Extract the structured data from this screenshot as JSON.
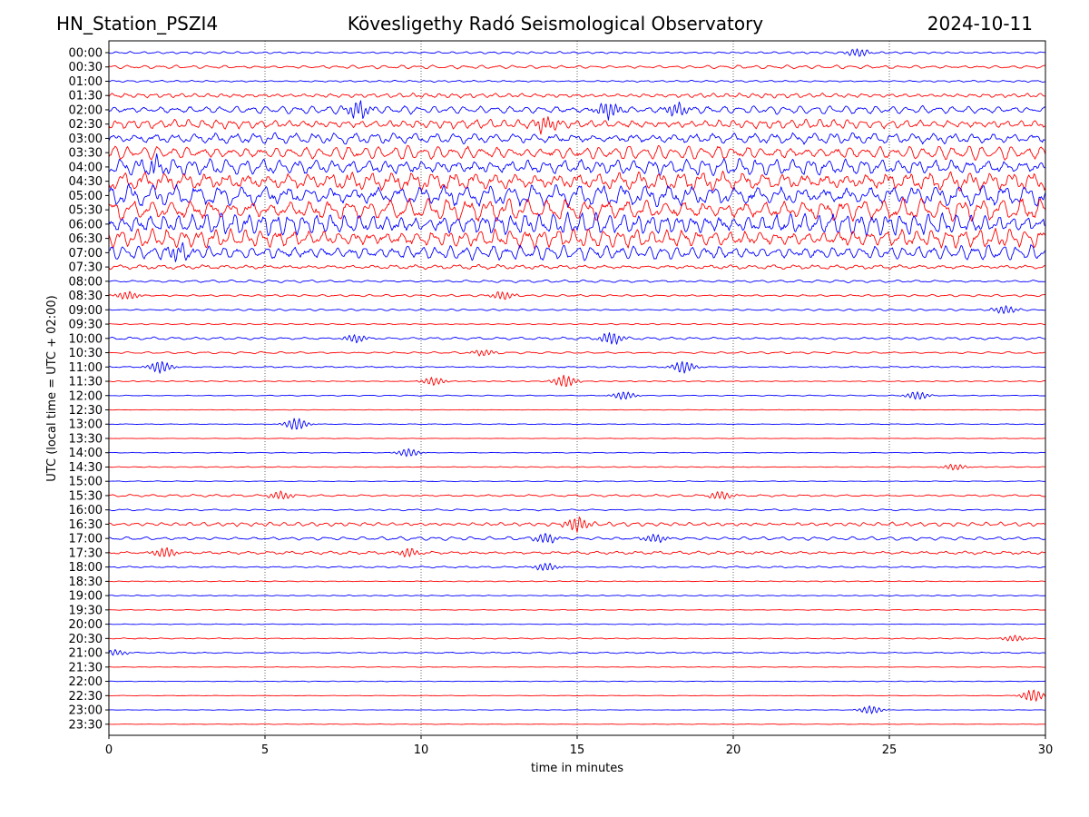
{
  "header": {
    "station": "HN_Station_PSZI4",
    "observatory": "Kövesligethy Radó Seismological Observatory",
    "date": "2024-10-11"
  },
  "chart_data": {
    "type": "line",
    "title": "Kövesligethy Radó Seismological Observatory",
    "xlabel": "time in minutes",
    "ylabel": "UTC (local time = UTC + 02:00)",
    "xlim": [
      0,
      30
    ],
    "xticks": [
      "0",
      "5",
      "10",
      "15",
      "20",
      "25",
      "30"
    ],
    "grid": "vertical dotted lines at 5-minute ticks",
    "colors": [
      "#0000ff",
      "#ff0000"
    ],
    "rows": [
      "00:00",
      "00:30",
      "01:00",
      "01:30",
      "02:00",
      "02:30",
      "03:00",
      "03:30",
      "04:00",
      "04:30",
      "05:00",
      "05:30",
      "06:00",
      "06:30",
      "07:00",
      "07:30",
      "08:00",
      "08:30",
      "09:00",
      "09:30",
      "10:00",
      "10:30",
      "11:00",
      "11:30",
      "12:00",
      "12:30",
      "13:00",
      "13:30",
      "14:00",
      "14:30",
      "15:00",
      "15:30",
      "16:00",
      "16:30",
      "17:00",
      "17:30",
      "18:00",
      "18:30",
      "19:00",
      "19:30",
      "20:00",
      "20:30",
      "21:00",
      "21:30",
      "22:00",
      "22:30",
      "23:00",
      "23:30"
    ],
    "relative_amplitude": [
      1.2,
      2.0,
      1.0,
      2.5,
      4.5,
      5.0,
      6.0,
      7.5,
      9.0,
      10.0,
      12.0,
      12.0,
      12.0,
      10.0,
      8.0,
      2.5,
      1.5,
      1.2,
      1.0,
      0.7,
      1.5,
      1.2,
      0.8,
      0.6,
      0.6,
      0.3,
      0.4,
      0.3,
      0.4,
      0.5,
      0.5,
      1.3,
      1.0,
      2.2,
      2.0,
      1.8,
      1.0,
      0.5,
      0.6,
      0.4,
      0.4,
      0.6,
      0.8,
      0.3,
      0.4,
      0.3,
      0.3,
      0.3
    ],
    "bursts": [
      {
        "row": 0,
        "t": 24.0,
        "a": 2.0
      },
      {
        "row": 4,
        "t": 8.0,
        "a": 4.0
      },
      {
        "row": 4,
        "t": 16.0,
        "a": 4.0
      },
      {
        "row": 4,
        "t": 18.2,
        "a": 3.0
      },
      {
        "row": 5,
        "t": 14.0,
        "a": 3.5
      },
      {
        "row": 8,
        "t": 1.5,
        "a": 3.0
      },
      {
        "row": 14,
        "t": 2.2,
        "a": 3.0
      },
      {
        "row": 17,
        "t": 0.6,
        "a": 2.0
      },
      {
        "row": 17,
        "t": 12.6,
        "a": 2.0
      },
      {
        "row": 18,
        "t": 28.7,
        "a": 2.0
      },
      {
        "row": 20,
        "t": 7.9,
        "a": 2.0
      },
      {
        "row": 20,
        "t": 16.1,
        "a": 3.0
      },
      {
        "row": 21,
        "t": 12.0,
        "a": 1.5
      },
      {
        "row": 22,
        "t": 1.65,
        "a": 3.0
      },
      {
        "row": 22,
        "t": 18.4,
        "a": 3.0
      },
      {
        "row": 23,
        "t": 14.6,
        "a": 3.0
      },
      {
        "row": 23,
        "t": 10.4,
        "a": 2.0
      },
      {
        "row": 24,
        "t": 16.5,
        "a": 2.0
      },
      {
        "row": 24,
        "t": 25.9,
        "a": 2.0
      },
      {
        "row": 26,
        "t": 6.0,
        "a": 3.0
      },
      {
        "row": 28,
        "t": 9.6,
        "a": 2.0
      },
      {
        "row": 29,
        "t": 27.1,
        "a": 1.5
      },
      {
        "row": 31,
        "t": 5.5,
        "a": 2.0
      },
      {
        "row": 31,
        "t": 19.6,
        "a": 2.0
      },
      {
        "row": 33,
        "t": 15.0,
        "a": 3.5
      },
      {
        "row": 34,
        "t": 14.0,
        "a": 2.5
      },
      {
        "row": 34,
        "t": 17.5,
        "a": 2.0
      },
      {
        "row": 35,
        "t": 1.8,
        "a": 2.5
      },
      {
        "row": 35,
        "t": 9.6,
        "a": 2.0
      },
      {
        "row": 36,
        "t": 14.0,
        "a": 2.0
      },
      {
        "row": 41,
        "t": 29.0,
        "a": 1.5
      },
      {
        "row": 42,
        "t": 0.2,
        "a": 1.5
      },
      {
        "row": 45,
        "t": 29.6,
        "a": 3.0
      },
      {
        "row": 46,
        "t": 24.4,
        "a": 2.0
      }
    ]
  }
}
